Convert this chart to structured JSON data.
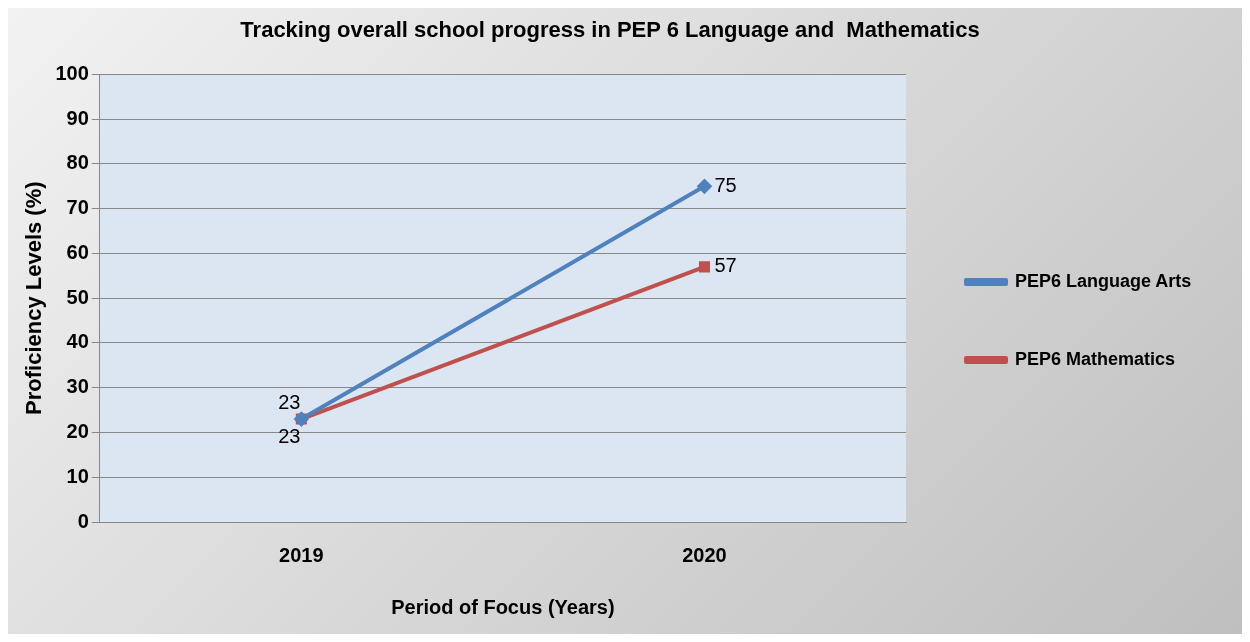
{
  "chart_data": {
    "type": "line",
    "title": "Tracking overall school progress in PEP 6 Language and  Mathematics",
    "xlabel": "Period of Focus (Years)",
    "ylabel": "Proficiency Levels (%)",
    "categories": [
      "2019",
      "2020"
    ],
    "series": [
      {
        "name": "PEP6 Language Arts",
        "color": "#4f81bd",
        "values": [
          23,
          75
        ],
        "marker": "diamond"
      },
      {
        "name": "PEP6 Mathematics",
        "color": "#c0504d",
        "values": [
          23,
          57
        ],
        "marker": "square"
      }
    ],
    "ylim": [
      0,
      100
    ],
    "yticks": [
      0,
      10,
      20,
      30,
      40,
      50,
      60,
      70,
      80,
      90,
      100
    ],
    "grid": "y",
    "legend": "right",
    "data_labels": true,
    "line_style": "solid"
  }
}
